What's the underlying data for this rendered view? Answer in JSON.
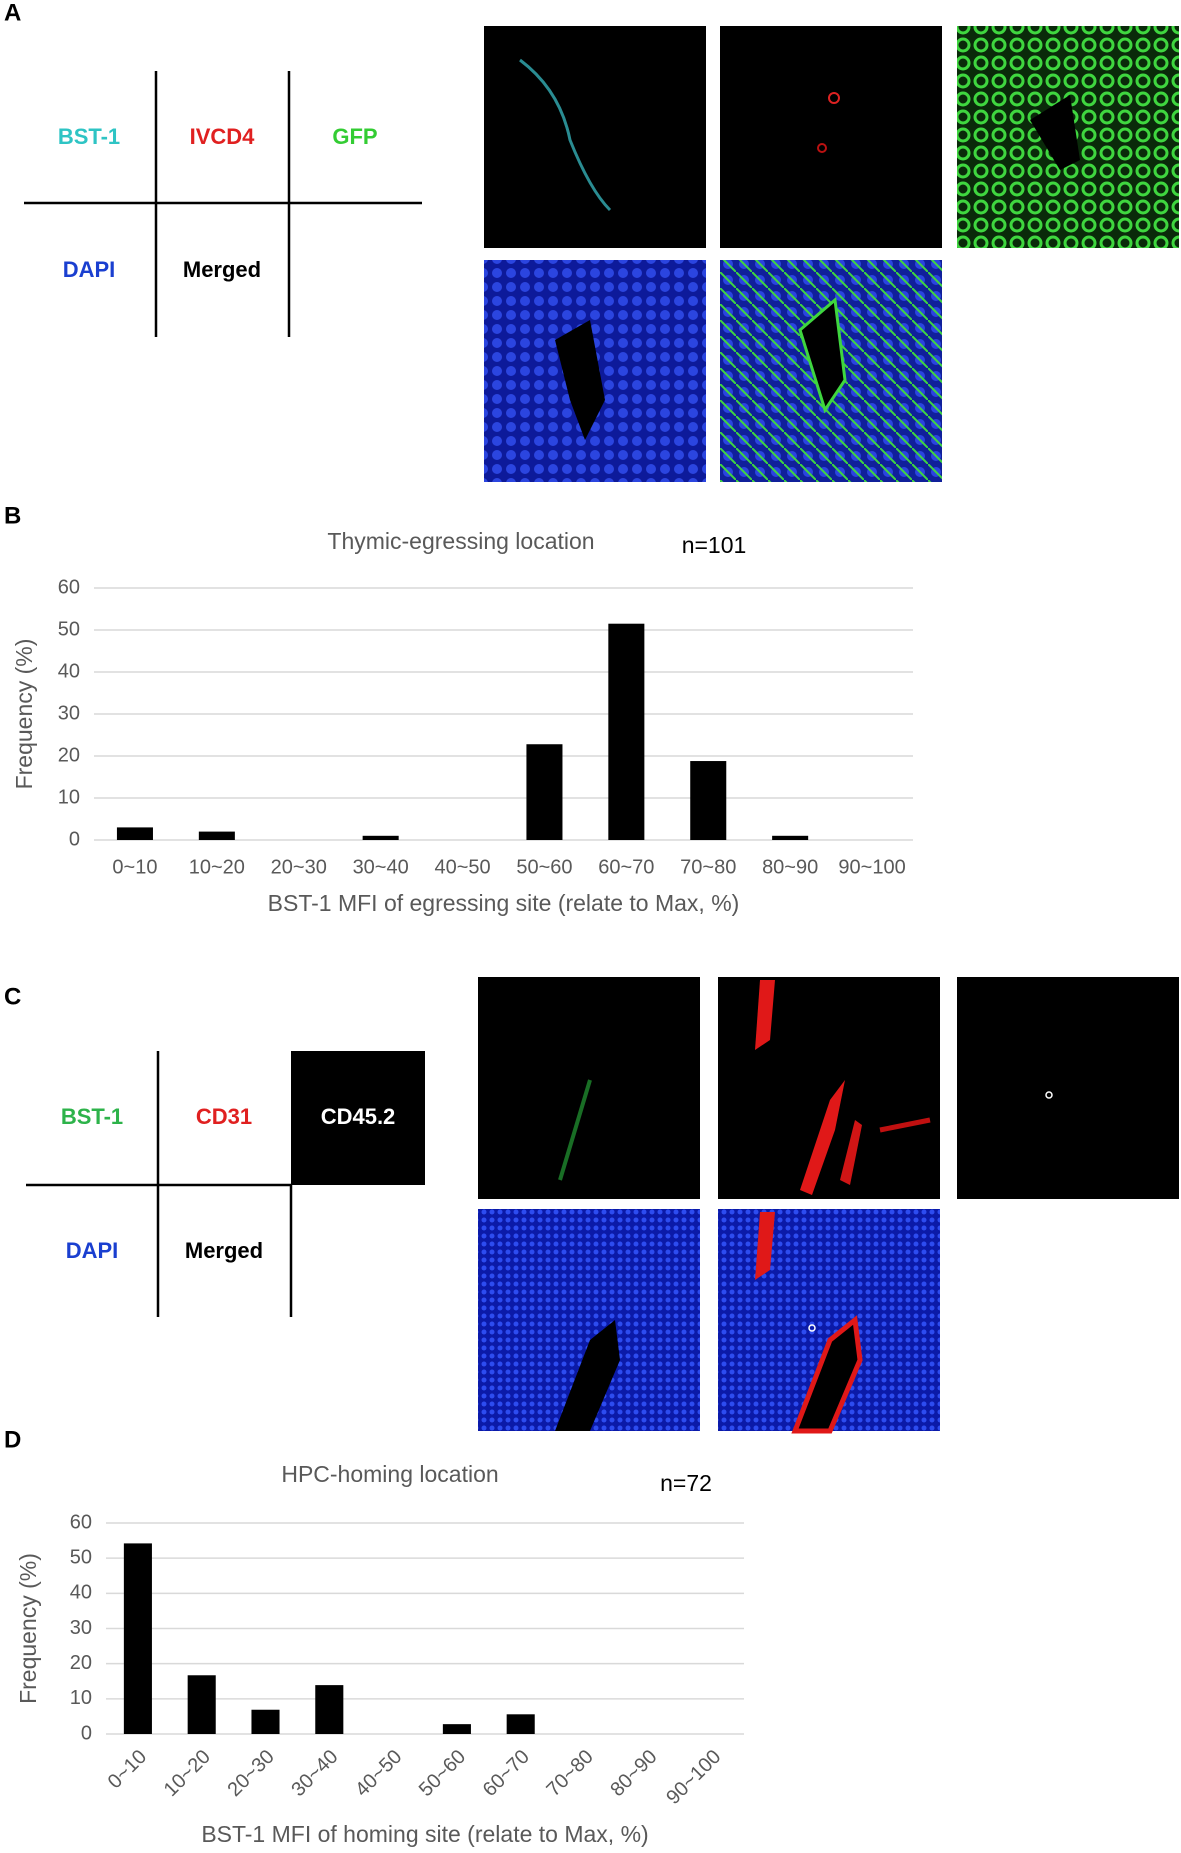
{
  "panels": [
    "A",
    "B",
    "C",
    "D"
  ],
  "legend_a": {
    "cells": [
      "BST-1",
      "IVCD4",
      "GFP",
      "DAPI",
      "Merged"
    ]
  },
  "legend_c": {
    "cells": [
      "BST-1",
      "CD31",
      "CD45.2",
      "DAPI",
      "Merged"
    ]
  },
  "chart_data": [
    {
      "type": "bar",
      "title": "Thymic-egressing location",
      "annotation": "n=101",
      "y_label": "Frequency (%)",
      "x_label": "BST-1 MFI of egressing site (relate to Max, %)",
      "categories": [
        "0~10",
        "10~20",
        "20~30",
        "30~40",
        "40~50",
        "50~60",
        "60~70",
        "70~80",
        "80~90",
        "90~100"
      ],
      "values": [
        3,
        2,
        0,
        1,
        0,
        22.8,
        51.5,
        18.8,
        1,
        0
      ],
      "color": "#000000",
      "ylim": [
        0,
        60
      ],
      "yticks": [
        0,
        10,
        20,
        30,
        40,
        50,
        60
      ],
      "grid": true
    },
    {
      "type": "bar",
      "title": "HPC-homing location",
      "annotation": "n=72",
      "y_label": "Frequency (%)",
      "x_label": "BST-1 MFI of homing site (relate to Max, %)",
      "categories": [
        "0~10",
        "10~20",
        "20~30",
        "30~40",
        "40~50",
        "50~60",
        "60~70",
        "70~80",
        "80~90",
        "90~100"
      ],
      "values": [
        54.2,
        16.7,
        6.9,
        13.9,
        0,
        2.8,
        5.6,
        0,
        0,
        0
      ],
      "color": "#000000",
      "ylim": [
        0,
        60
      ],
      "yticks": [
        0,
        10,
        20,
        30,
        40,
        50,
        60
      ],
      "grid": true
    }
  ]
}
